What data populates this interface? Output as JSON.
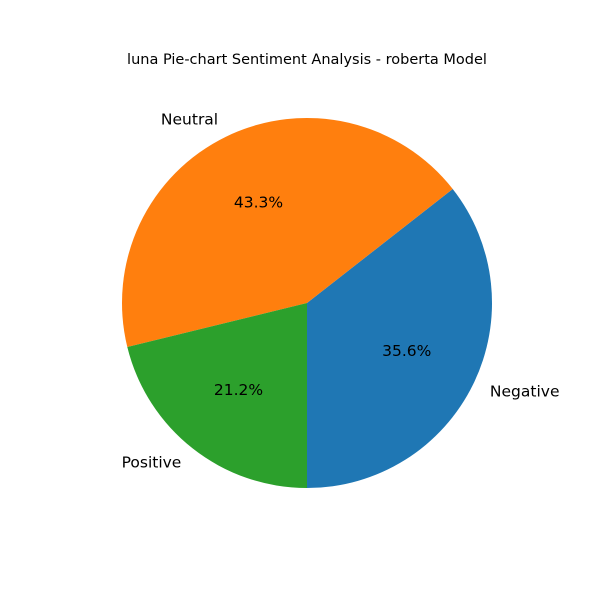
{
  "chart_data": {
    "type": "pie",
    "title": "luna Pie-chart Sentiment Analysis - roberta Model",
    "categories": [
      "Negative",
      "Neutral",
      "Positive"
    ],
    "values": [
      35.6,
      43.3,
      21.2
    ],
    "value_labels": [
      "35.6%",
      "43.3%",
      "21.2%"
    ],
    "colors": [
      "#1f77b4",
      "#ff7f0e",
      "#2ca02c"
    ],
    "start_angle_deg": 270,
    "direction": "counterclockwise",
    "legend": "none"
  }
}
